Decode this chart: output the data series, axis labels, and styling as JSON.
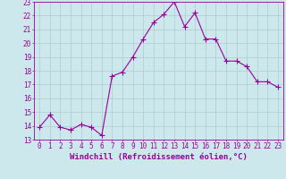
{
  "x": [
    0,
    1,
    2,
    3,
    4,
    5,
    6,
    7,
    8,
    9,
    10,
    11,
    12,
    13,
    14,
    15,
    16,
    17,
    18,
    19,
    20,
    21,
    22,
    23
  ],
  "y": [
    13.9,
    14.8,
    13.9,
    13.7,
    14.1,
    13.9,
    13.3,
    17.6,
    17.9,
    19.0,
    20.3,
    21.5,
    22.1,
    23.0,
    21.2,
    22.2,
    20.3,
    20.3,
    18.7,
    18.7,
    18.3,
    17.2,
    17.2,
    16.8
  ],
  "line_color": "#990099",
  "marker": "+",
  "marker_size": 4,
  "bg_color": "#cce8ec",
  "grid_color": "#aaccd0",
  "xlabel": "Windchill (Refroidissement éolien,°C)",
  "xlim": [
    -0.5,
    23.5
  ],
  "ylim": [
    13,
    23
  ],
  "xticks": [
    0,
    1,
    2,
    3,
    4,
    5,
    6,
    7,
    8,
    9,
    10,
    11,
    12,
    13,
    14,
    15,
    16,
    17,
    18,
    19,
    20,
    21,
    22,
    23
  ],
  "yticks": [
    13,
    14,
    15,
    16,
    17,
    18,
    19,
    20,
    21,
    22,
    23
  ],
  "tick_fontsize": 5.5,
  "xlabel_fontsize": 6.5,
  "line_width": 0.8
}
